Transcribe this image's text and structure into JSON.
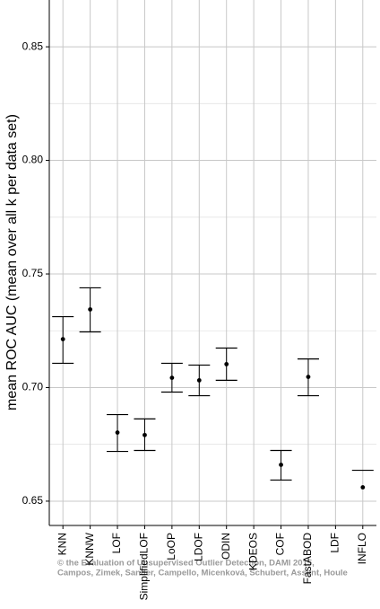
{
  "chart_data": {
    "type": "errorbar",
    "y_label": "mean ROC AUC (mean over all k per data set)",
    "categories": [
      "KNN",
      "KNNW",
      "LOF",
      "SimplifiedLOF",
      "LoOP",
      "LDOF",
      "ODIN",
      "KDEOS",
      "COF",
      "FastABOD",
      "LDF",
      "INFLO"
    ],
    "values": [
      0.7213,
      0.7344,
      0.6802,
      0.6791,
      0.7043,
      0.7032,
      0.7103,
      null,
      0.666,
      0.7047,
      null,
      0.6561
    ],
    "upper": [
      0.7312,
      0.7439,
      0.6881,
      0.6862,
      0.7107,
      0.7099,
      0.7174,
      null,
      0.6723,
      0.7126,
      null,
      0.6636
    ],
    "lower": [
      0.7107,
      0.7245,
      0.6719,
      0.6723,
      0.698,
      0.6964,
      0.7032,
      null,
      0.6593,
      0.6964,
      null,
      null
    ],
    "color": "#000000",
    "ylim": [
      0.6393,
      0.8706
    ],
    "yticks": [
      {
        "value": 0.65,
        "label": "0.65"
      },
      {
        "value": 0.7,
        "label": "0.70"
      },
      {
        "value": 0.75,
        "label": "0.75"
      },
      {
        "value": 0.8,
        "label": "0.80"
      },
      {
        "value": 0.85,
        "label": "0.85"
      }
    ],
    "yminor": [
      0.675,
      0.725,
      0.775,
      0.825
    ],
    "grid": true,
    "annotations": [
      "© the Evaluation of Unsupervised Outlier Detection, DAMI 2015,",
      "Campos, Zimek, Sander, Campello, Micenková, Schubert, Assent, Houle"
    ]
  }
}
